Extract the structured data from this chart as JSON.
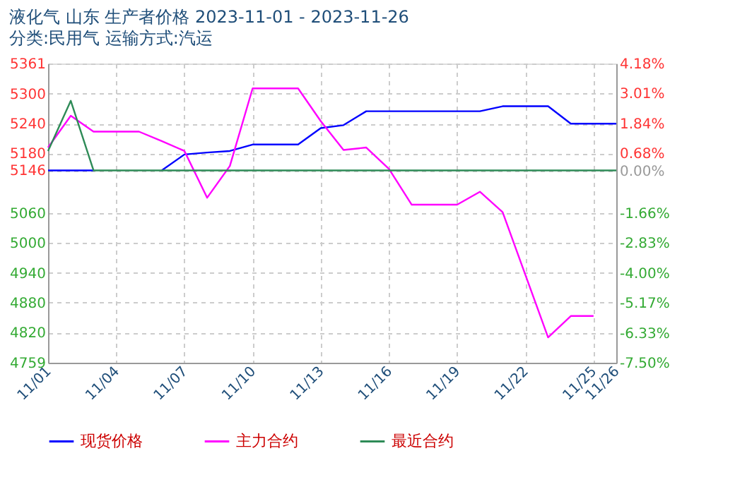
{
  "chart_data": {
    "type": "line",
    "title": "液化气 山东 生产者价格 2023-11-01 - 2023-11-26",
    "subtitle": "分类:民用气 运输方式:汽运",
    "x": [
      "2023-11-01",
      "2023-11-02",
      "2023-11-03",
      "2023-11-04",
      "2023-11-05",
      "2023-11-06",
      "2023-11-07",
      "2023-11-08",
      "2023-11-09",
      "2023-11-10",
      "2023-11-11",
      "2023-11-12",
      "2023-11-13",
      "2023-11-14",
      "2023-11-15",
      "2023-11-16",
      "2023-11-17",
      "2023-11-18",
      "2023-11-19",
      "2023-11-20",
      "2023-11-21",
      "2023-11-22",
      "2023-11-23",
      "2023-11-24",
      "2023-11-25",
      "2023-11-26"
    ],
    "series": [
      {
        "name": "现货价格",
        "color": "#0000ff",
        "values": [
          5146,
          5146,
          5146,
          null,
          null,
          5146,
          5178,
          5182,
          5185,
          5198,
          5198,
          5198,
          5231,
          5237,
          5265,
          5265,
          5265,
          5265,
          5265,
          5265,
          5275,
          5275,
          5275,
          5240,
          5240,
          5240
        ]
      },
      {
        "name": "主力合约",
        "color": "#ff00ff",
        "values": [
          5192,
          5256,
          5224,
          5224,
          5224,
          5205,
          5185,
          5091,
          5155,
          5311,
          5311,
          5311,
          5245,
          5187,
          5192,
          5149,
          5077,
          5077,
          5077,
          5103,
          5062,
          4936,
          4810,
          4853,
          4853,
          null
        ]
      },
      {
        "name": "最近合约",
        "color": "#2e8b57",
        "values": [
          5185,
          5286,
          5146,
          5146,
          5146,
          5146,
          5146,
          5146,
          5146,
          5146,
          5146,
          5146,
          5146,
          5146,
          5146,
          5146,
          5146,
          5146,
          5146,
          5146,
          5146,
          5146,
          5146,
          5146,
          5146,
          5146
        ]
      }
    ],
    "xlim": [
      "2023-11-01",
      "2023-11-26"
    ],
    "xticks": [
      {
        "value": "2023-11-01",
        "label": "11/01"
      },
      {
        "value": "2023-11-04",
        "label": "11/04"
      },
      {
        "value": "2023-11-07",
        "label": "11/07"
      },
      {
        "value": "2023-11-10",
        "label": "11/10"
      },
      {
        "value": "2023-11-13",
        "label": "11/13"
      },
      {
        "value": "2023-11-16",
        "label": "11/16"
      },
      {
        "value": "2023-11-19",
        "label": "11/19"
      },
      {
        "value": "2023-11-22",
        "label": "11/22"
      },
      {
        "value": "2023-11-25",
        "label": "11/25"
      },
      {
        "value": "2023-11-26",
        "label": "11/26"
      }
    ],
    "ylim": [
      4759,
      5361
    ],
    "yticks": [
      4759,
      4820,
      4880,
      4940,
      5000,
      5060,
      5146,
      5180,
      5240,
      5300,
      5361
    ],
    "y2lim": [
      -7.5,
      4.18
    ],
    "y2ticks": [
      {
        "value": -7.5,
        "label": "-7.50%"
      },
      {
        "value": -6.33,
        "label": "-6.33%"
      },
      {
        "value": -5.17,
        "label": "-5.17%"
      },
      {
        "value": -4.0,
        "label": "-4.00%"
      },
      {
        "value": -2.83,
        "label": "-2.83%"
      },
      {
        "value": -1.66,
        "label": "-1.66%"
      },
      {
        "value": 0,
        "label": "0.00%"
      },
      {
        "value": 0.68,
        "label": "0.68%"
      },
      {
        "value": 1.84,
        "label": "1.84%"
      },
      {
        "value": 3.01,
        "label": "3.01%"
      },
      {
        "value": 4.18,
        "label": "4.18%"
      }
    ],
    "grid": true,
    "legend": "bottom",
    "marker": "none",
    "line_style": "solid"
  }
}
